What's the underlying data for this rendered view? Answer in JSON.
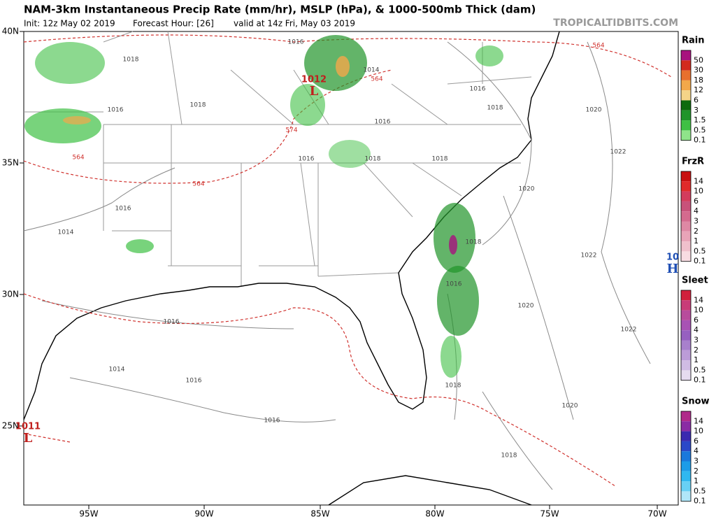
{
  "header": {
    "title": "NAM-3km Instantaneous Precip Rate (mm/hr), MSLP (hPa), & 1000-500mb Thick (dam)",
    "init": "Init: 12z May 02 2019",
    "forecast_hour": "Forecast Hour: [26]",
    "valid": "valid at 14z Fri, May 03 2019",
    "source": "TROPICALTIDBITS.COM"
  },
  "map": {
    "lat_labels": [
      "40N",
      "35N",
      "30N",
      "25N"
    ],
    "lon_labels": [
      "95W",
      "90W",
      "85W",
      "80W",
      "75W",
      "70W"
    ],
    "isobar_labels": [
      "1016",
      "1018",
      "1014",
      "1016",
      "1018",
      "1016",
      "1018",
      "1016",
      "1020",
      "1022",
      "1016",
      "1018",
      "1018",
      "1020",
      "1016",
      "1014",
      "1018",
      "1022",
      "1016",
      "1020",
      "1022",
      "1016",
      "1014",
      "1016",
      "1018",
      "1020",
      "1016",
      "1018"
    ],
    "thickness_labels": [
      "564",
      "564",
      "574",
      "564",
      "564"
    ],
    "centers": [
      {
        "pressure": "1012",
        "letter": "L"
      },
      {
        "pressure": "1011",
        "letter": "L"
      },
      {
        "pressure": "10",
        "letter": "H"
      }
    ]
  },
  "legend": [
    {
      "title": "Rain",
      "levels": [
        50,
        30,
        18,
        12,
        6,
        3,
        1.5,
        0.5,
        0.1
      ],
      "colors": [
        "#a8127e",
        "#d22a1e",
        "#e8702e",
        "#f2a84a",
        "#f4d488",
        "#0d6b0d",
        "#21942a",
        "#3fc044",
        "#8fe48a"
      ]
    },
    {
      "title": "FrzR",
      "levels": [
        14,
        10,
        6,
        4,
        3,
        2,
        1,
        0.5,
        0.1
      ],
      "colors": [
        "#c81010",
        "#e02a2a",
        "#d33c5c",
        "#c8527a",
        "#d46a8e",
        "#de88a4",
        "#e8a4b8",
        "#f0c0cc",
        "#f8dce2"
      ]
    },
    {
      "title": "Sleet",
      "levels": [
        14,
        10,
        6,
        4,
        3,
        2,
        1,
        0.5,
        0.1
      ],
      "colors": [
        "#d0203c",
        "#c83c78",
        "#b84c9c",
        "#a852b4",
        "#9660c0",
        "#a880cc",
        "#bc9cd8",
        "#d0bce4",
        "#e6dcf0"
      ]
    },
    {
      "title": "Snow",
      "levels": [
        14,
        10,
        6,
        4,
        3,
        2,
        1,
        0.5,
        0.1
      ],
      "colors": [
        "#b02a8a",
        "#8a2ca4",
        "#3a2ab0",
        "#2a48c8",
        "#1a78dc",
        "#1c9ce8",
        "#30b8f0",
        "#68d0f4",
        "#b0e6f8"
      ]
    }
  ]
}
